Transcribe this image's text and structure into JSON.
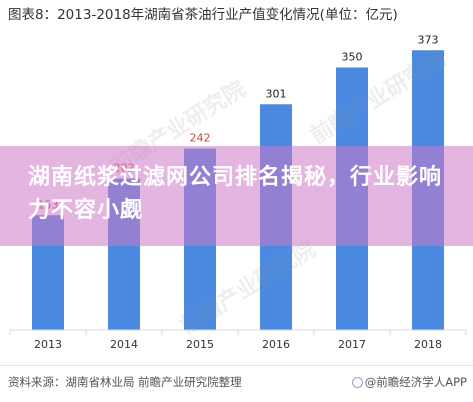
{
  "chart_data": {
    "type": "bar",
    "title": "图表8：2013-2018年湖南省茶油行业产值变化情况(单位：亿元)",
    "categories": [
      "2013",
      "2014",
      "2015",
      "2016",
      "2017",
      "2018"
    ],
    "values": [
      153,
      202,
      242,
      301,
      350,
      373
    ],
    "ylim": [
      0,
      400
    ],
    "grid": false,
    "bar_color": "#4a8ae0",
    "label_color": "#cc4b3f"
  },
  "banner": {
    "text": "湖南纸浆过滤网公司排名揭秘，行业影响力不容小觑"
  },
  "watermark": {
    "text": "前瞻产业研究院"
  },
  "footer": {
    "source": "资料来源：湖南省林业局 前瞻产业研究院整理",
    "brand": "@前瞻经济学人APP"
  }
}
